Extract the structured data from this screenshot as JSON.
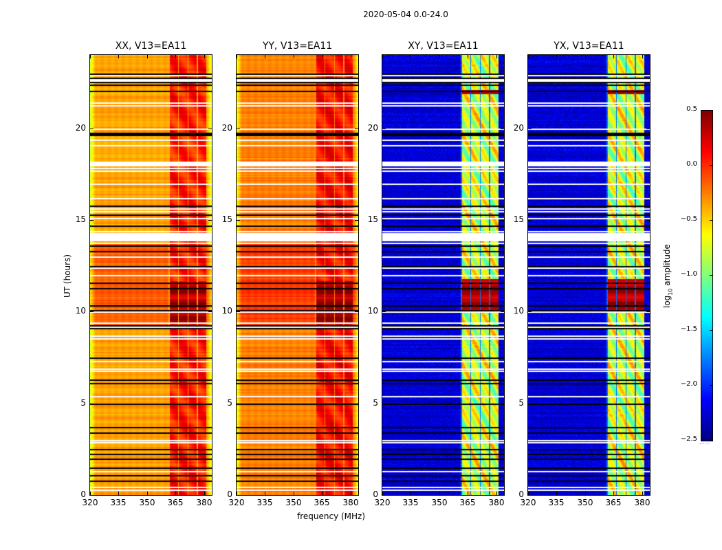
{
  "suptitle": "2020-05-04 0.0-24.0",
  "colorbar": {
    "label_main": "log",
    "label_sub": "10",
    "label_rest": " amplitude",
    "ticks": [
      "0.5",
      "0.0",
      "−0.5",
      "−1.0",
      "−1.5",
      "−2.0",
      "−2.5"
    ],
    "dots": "......"
  },
  "chart_data": {
    "type": "heatmap",
    "title": "2020-05-04 0.0-24.0",
    "colormap": "jet",
    "color_range": [
      -2.5,
      0.5
    ],
    "colorbar_label": "log10 amplitude",
    "colorbar_ticks": [
      0.5,
      0.0,
      -0.5,
      -1.0,
      -1.5,
      -2.0,
      -2.5
    ],
    "xlabel": "frequency (MHz)",
    "ylabel": "UT (hours)",
    "xlim": [
      320,
      384
    ],
    "ylim": [
      0,
      24
    ],
    "xticks": [
      320,
      335,
      350,
      365,
      380
    ],
    "xtick_labels": [
      "320",
      "335",
      "350",
      "365",
      "380"
    ],
    "yticks": [
      0,
      5,
      10,
      15,
      20
    ],
    "ytick_labels": [
      "0",
      "5",
      "10",
      "15",
      "20"
    ],
    "rfi_band_mhz": [
      361,
      381
    ],
    "flagged_white_hours": [
      0.3,
      0.45,
      1.3,
      2.9,
      3.0,
      5.0,
      5.4,
      6.8,
      6.9,
      7.3,
      8.55,
      8.7,
      9.2,
      9.4,
      10.0,
      11.6,
      12.0,
      12.4,
      13.0,
      13.75,
      13.9,
      14.1,
      14.2,
      14.3,
      14.4,
      15.1,
      15.5,
      15.65,
      15.8,
      16.2,
      17.0,
      17.7,
      17.85,
      18.0,
      18.1,
      18.2,
      19.1,
      19.4,
      20.0,
      21.25,
      21.4,
      22.6,
      22.7,
      22.9
    ],
    "flagged_black_hours": [
      0.8,
      1.1,
      1.5,
      2.0,
      2.25,
      2.5,
      3.4,
      3.7,
      5.0,
      6.1,
      6.3,
      7.5,
      9.1,
      9.25,
      10.1,
      10.35,
      11.3,
      11.6,
      12.5,
      13.3,
      13.6,
      14.7,
      15.3,
      15.8,
      19.65,
      19.75,
      22.05,
      22.4,
      22.55,
      22.75,
      23.0
    ],
    "panels": [
      {
        "title": "XX, V13=EA11",
        "pol": "XX",
        "base_level": -0.35,
        "rfi_level": 0.05,
        "hot_hours": [
          9.3,
          11.7
        ],
        "hot_level": 0.35,
        "warm_hours": [
          9.2,
          13.7
        ],
        "warm_offset": 0.2
      },
      {
        "title": "YY, V13=EA11",
        "pol": "YY",
        "base_level": -0.25,
        "rfi_level": 0.1,
        "hot_hours": [
          9.3,
          11.7
        ],
        "hot_level": 0.4,
        "warm_hours": [
          9.2,
          13.7
        ],
        "warm_offset": 0.2
      },
      {
        "title": "XY, V13=EA11",
        "pol": "XY",
        "base_level": -2.25,
        "rfi_level": -0.75,
        "hot_hours": [
          10.0,
          11.8
        ],
        "hot_level": 0.35,
        "warm_hours": [
          21.9,
          22.1
        ],
        "warm_offset": 1.0
      },
      {
        "title": "YX, V13=EA11",
        "pol": "YX",
        "base_level": -2.25,
        "rfi_level": -0.75,
        "hot_hours": [
          10.0,
          11.8
        ],
        "hot_level": 0.35,
        "warm_hours": [
          21.9,
          22.1
        ],
        "warm_offset": 1.0
      }
    ]
  }
}
